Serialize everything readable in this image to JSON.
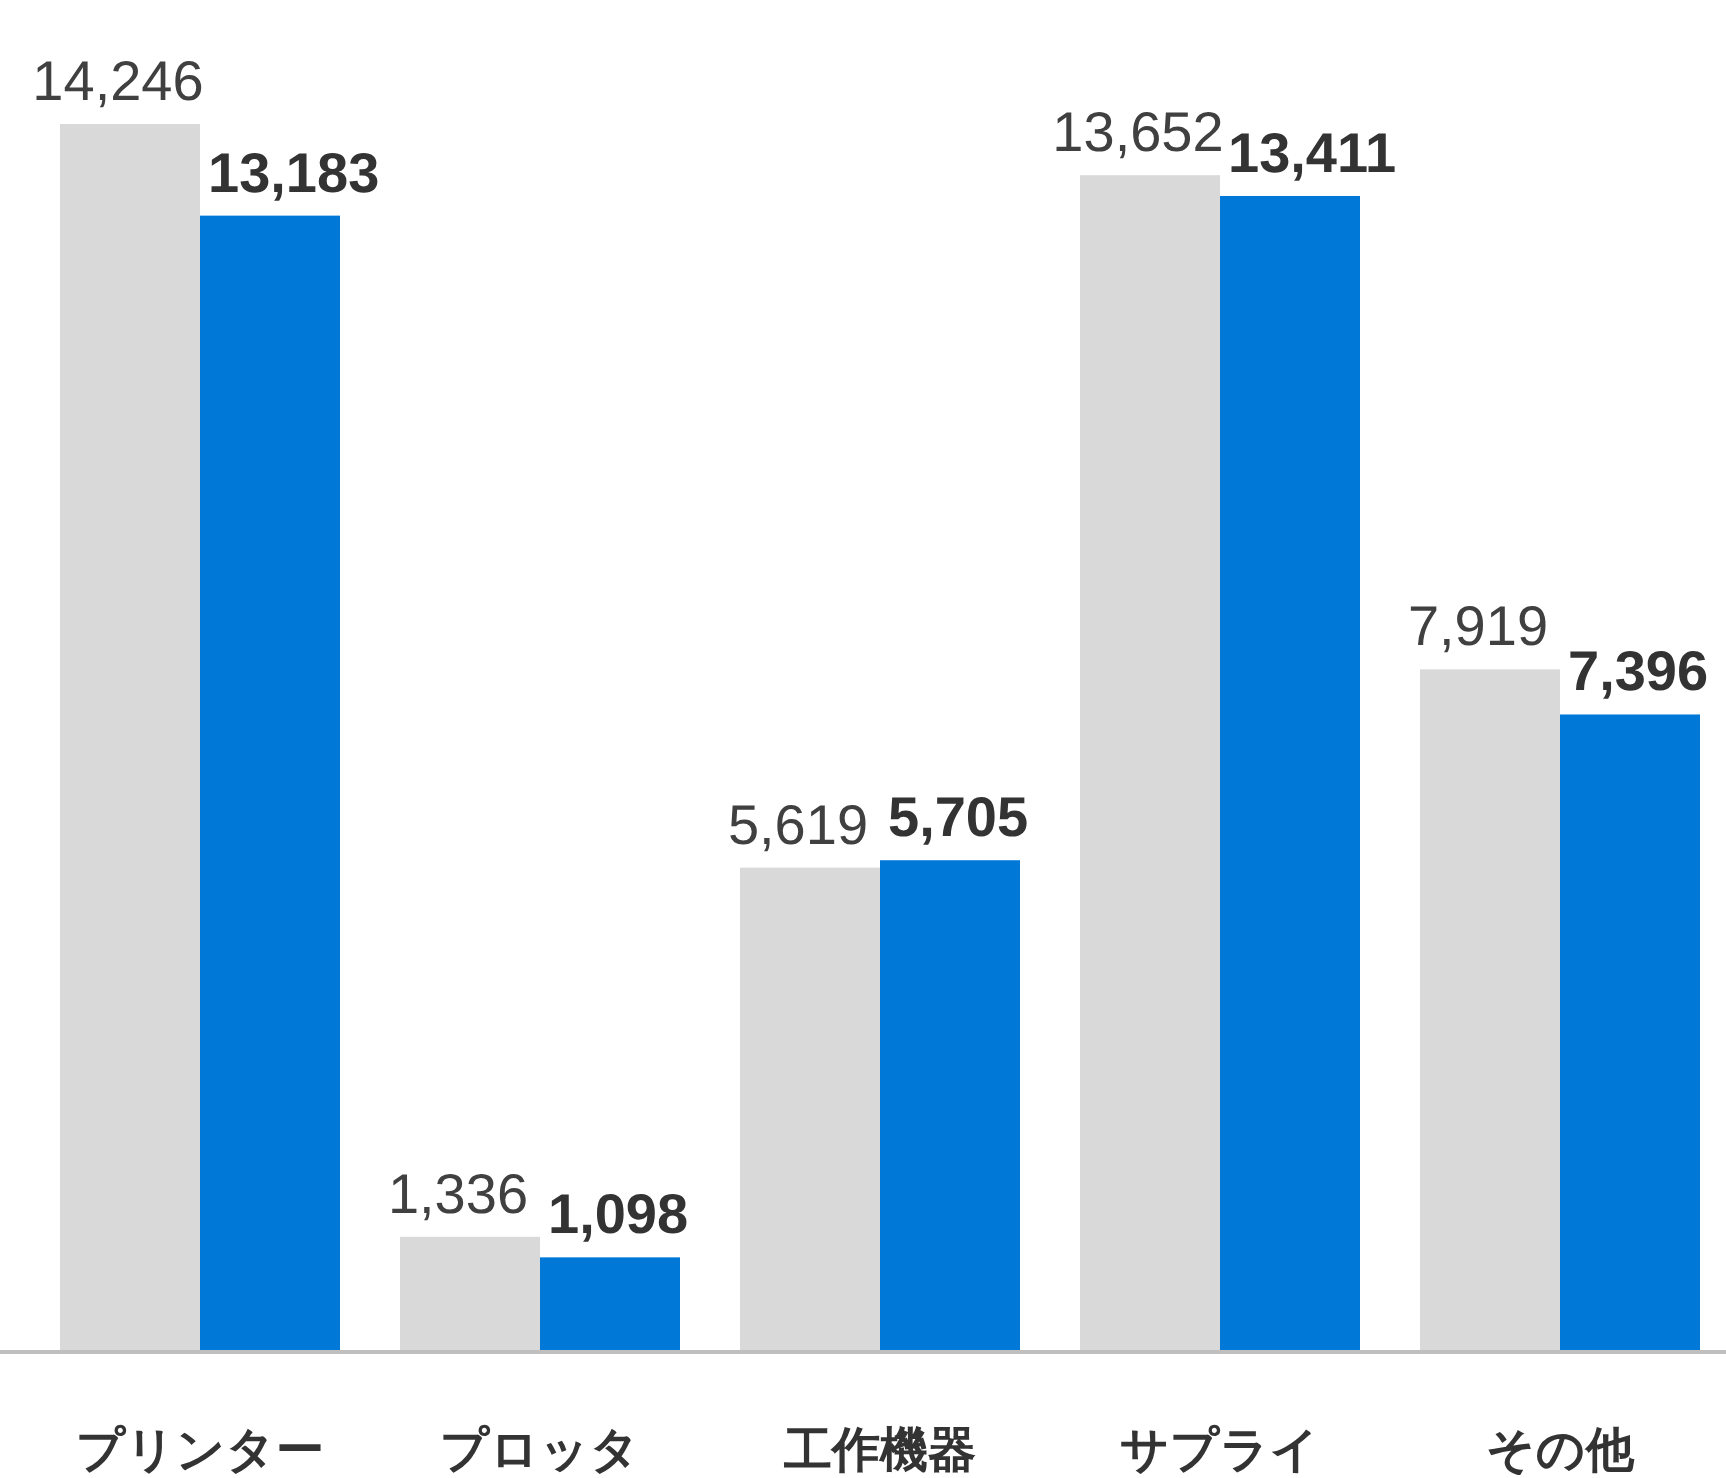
{
  "chart_data": {
    "type": "bar",
    "categories": [
      "プリンター",
      "プロッタ",
      "工作機器",
      "サプライ",
      "その他"
    ],
    "series": [
      {
        "color": "#d9d9d9",
        "values": [
          14246,
          1336,
          5619,
          13652,
          7919
        ],
        "value_labels": [
          "14,246",
          "1,336",
          "5,619",
          "13,652",
          "7,919"
        ]
      },
      {
        "color": "#0078d7",
        "values": [
          13183,
          1098,
          5705,
          13411,
          7396
        ],
        "value_labels": [
          "13,183",
          "1,098",
          "5,705",
          "13,411",
          "7,396"
        ]
      }
    ]
  }
}
